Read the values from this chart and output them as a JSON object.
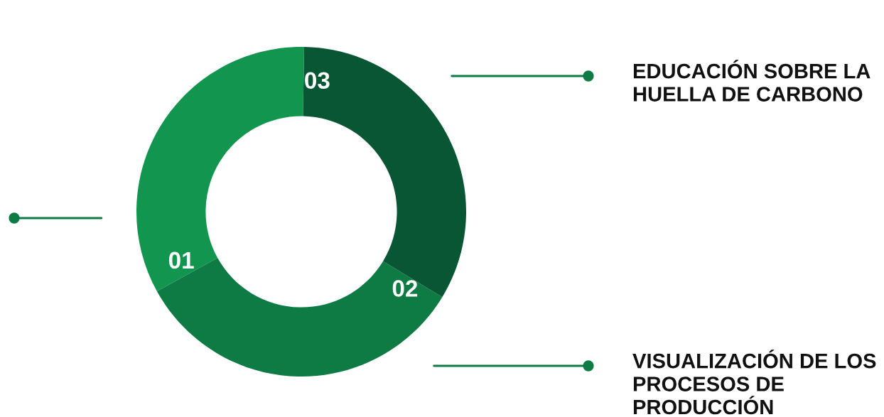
{
  "chart_data": {
    "type": "donut",
    "categories": [
      "01",
      "02",
      "03"
    ],
    "values": [
      33.3,
      33.3,
      33.4
    ],
    "colors": [
      "#12964f",
      "#0e7a44",
      "#095634"
    ],
    "annotations": [
      {
        "text": "VISUALIZACIÓN DE LOS\nPROCESOS DE\nPRODUCCIÓN",
        "x": "02"
      },
      {
        "text": "EDUCACIÓN SOBRE LA\nHUELLA DE CARBONO",
        "x": "03"
      }
    ],
    "legend": false
  }
}
